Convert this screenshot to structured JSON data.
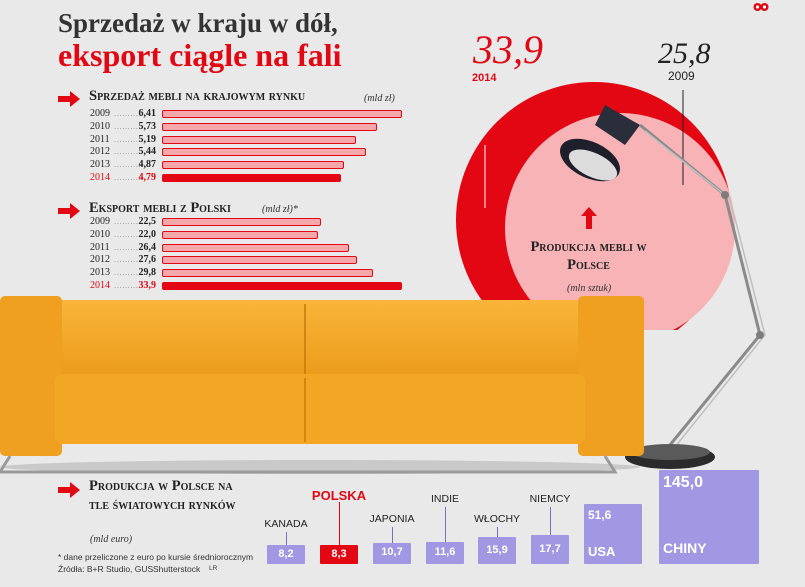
{
  "header": {
    "title_line1": "Sprzedaż w kraju w dół,",
    "title_line2": "eksport ciągle na fali"
  },
  "colors": {
    "accent_red": "#e30613",
    "bar_pink": "#f4a8ac",
    "bar_purple": "#a197e3",
    "sofa": "#f5a623"
  },
  "chart_data": [
    {
      "type": "bar",
      "title": "Sprzedaż mebli na krajowym rynku",
      "unit": "(mld zł)",
      "categories": [
        "2009",
        "2010",
        "2011",
        "2012",
        "2013",
        "2014"
      ],
      "values": [
        6.41,
        5.73,
        5.19,
        5.44,
        4.87,
        4.79
      ],
      "labels": [
        "6,41",
        "5,73",
        "5,19",
        "5,44",
        "4,87",
        "4,79"
      ],
      "highlight": "2014",
      "orientation": "horizontal"
    },
    {
      "type": "bar",
      "title": "Eksport mebli z Polski",
      "unit": "(mld zł)*",
      "categories": [
        "2009",
        "2010",
        "2011",
        "2012",
        "2013",
        "2014"
      ],
      "values": [
        22.5,
        22.0,
        26.4,
        27.6,
        29.8,
        33.9
      ],
      "labels": [
        "22,5",
        "22,0",
        "26,4",
        "27,6",
        "29,8",
        "33,9"
      ],
      "highlight": "2014",
      "orientation": "horizontal"
    },
    {
      "type": "area",
      "title": "Produkcja mebli w Polsce",
      "unit": "(mln sztuk)",
      "categories": [
        "2014",
        "2009"
      ],
      "values": [
        33.9,
        25.8
      ],
      "labels": [
        "33,9",
        "25,8"
      ]
    },
    {
      "type": "bar",
      "title": "Produkcja w Polsce na tle światowych rynków",
      "unit": "(mld euro)",
      "categories": [
        "KANADA",
        "POLSKA",
        "JAPONIA",
        "INDIE",
        "WŁOCHY",
        "NIEMCY",
        "USA",
        "CHINY"
      ],
      "values": [
        8.2,
        8.3,
        10.7,
        11.6,
        15.9,
        17.7,
        51.6,
        145.0
      ],
      "labels": [
        "8,2",
        "8,3",
        "10,7",
        "11,6",
        "15,9",
        "17,7",
        "51,6",
        "145,0"
      ],
      "highlight": "POLSKA"
    }
  ],
  "footnotes": {
    "note": "* dane przeliczone z euro po kursie średniorocznym",
    "source": "Źródła: B+R Studio, GUS",
    "photo": "Shutterstock",
    "author": "LR"
  }
}
